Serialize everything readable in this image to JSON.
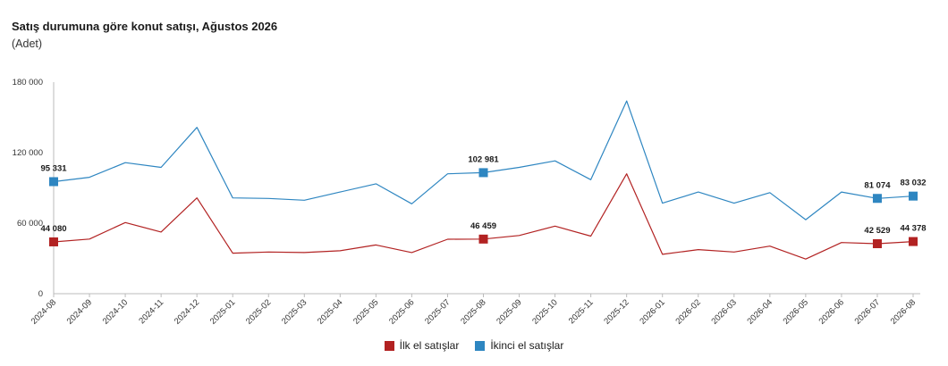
{
  "chart_data": {
    "type": "line",
    "title": "Satış durumuna göre konut satışı, Ağustos 2026",
    "subtitle": "(Adet)",
    "categories": [
      "2024-08",
      "2024-09",
      "2024-10",
      "2024-11",
      "2024-12",
      "2025-01",
      "2025-02",
      "2025-03",
      "2025-04",
      "2025-05",
      "2025-06",
      "2025-07",
      "2025-08",
      "2025-09",
      "2025-10",
      "2025-11",
      "2025-12",
      "2026-01",
      "2026-02",
      "2026-03",
      "2026-04",
      "2026-05",
      "2026-06",
      "2026-07",
      "2026-08"
    ],
    "ylim": [
      0,
      180000
    ],
    "yticks": [
      {
        "value": 0,
        "label": "0"
      },
      {
        "value": 60000,
        "label": "60 000"
      },
      {
        "value": 120000,
        "label": "120 000"
      },
      {
        "value": 180000,
        "label": "180 000"
      }
    ],
    "series": [
      {
        "name": "İlk el satışlar",
        "color": "#b22222",
        "values": [
          44080,
          46500,
          60500,
          52500,
          81500,
          34500,
          35500,
          35000,
          36500,
          41500,
          35000,
          46300,
          46459,
          49500,
          57500,
          49000,
          102000,
          33500,
          37500,
          35500,
          40500,
          29500,
          43500,
          42529,
          44378
        ],
        "labels": [
          {
            "index": 0,
            "text": "44 080"
          },
          {
            "index": 12,
            "text": "46 459"
          },
          {
            "index": 23,
            "text": "42 529"
          },
          {
            "index": 24,
            "text": "44 378"
          }
        ]
      },
      {
        "name": "İkinci el satışlar",
        "color": "#2e86c1",
        "values": [
          95331,
          99000,
          111500,
          107500,
          141500,
          81500,
          81000,
          79500,
          86500,
          93500,
          76500,
          102000,
          102981,
          107500,
          113000,
          97000,
          164000,
          77000,
          86500,
          77000,
          86000,
          63000,
          86500,
          81074,
          83032
        ],
        "labels": [
          {
            "index": 0,
            "text": "95 331"
          },
          {
            "index": 12,
            "text": "102 981"
          },
          {
            "index": 23,
            "text": "81 074"
          },
          {
            "index": 24,
            "text": "83 032"
          }
        ]
      }
    ],
    "legend_position": "bottom-center",
    "grid": false
  }
}
